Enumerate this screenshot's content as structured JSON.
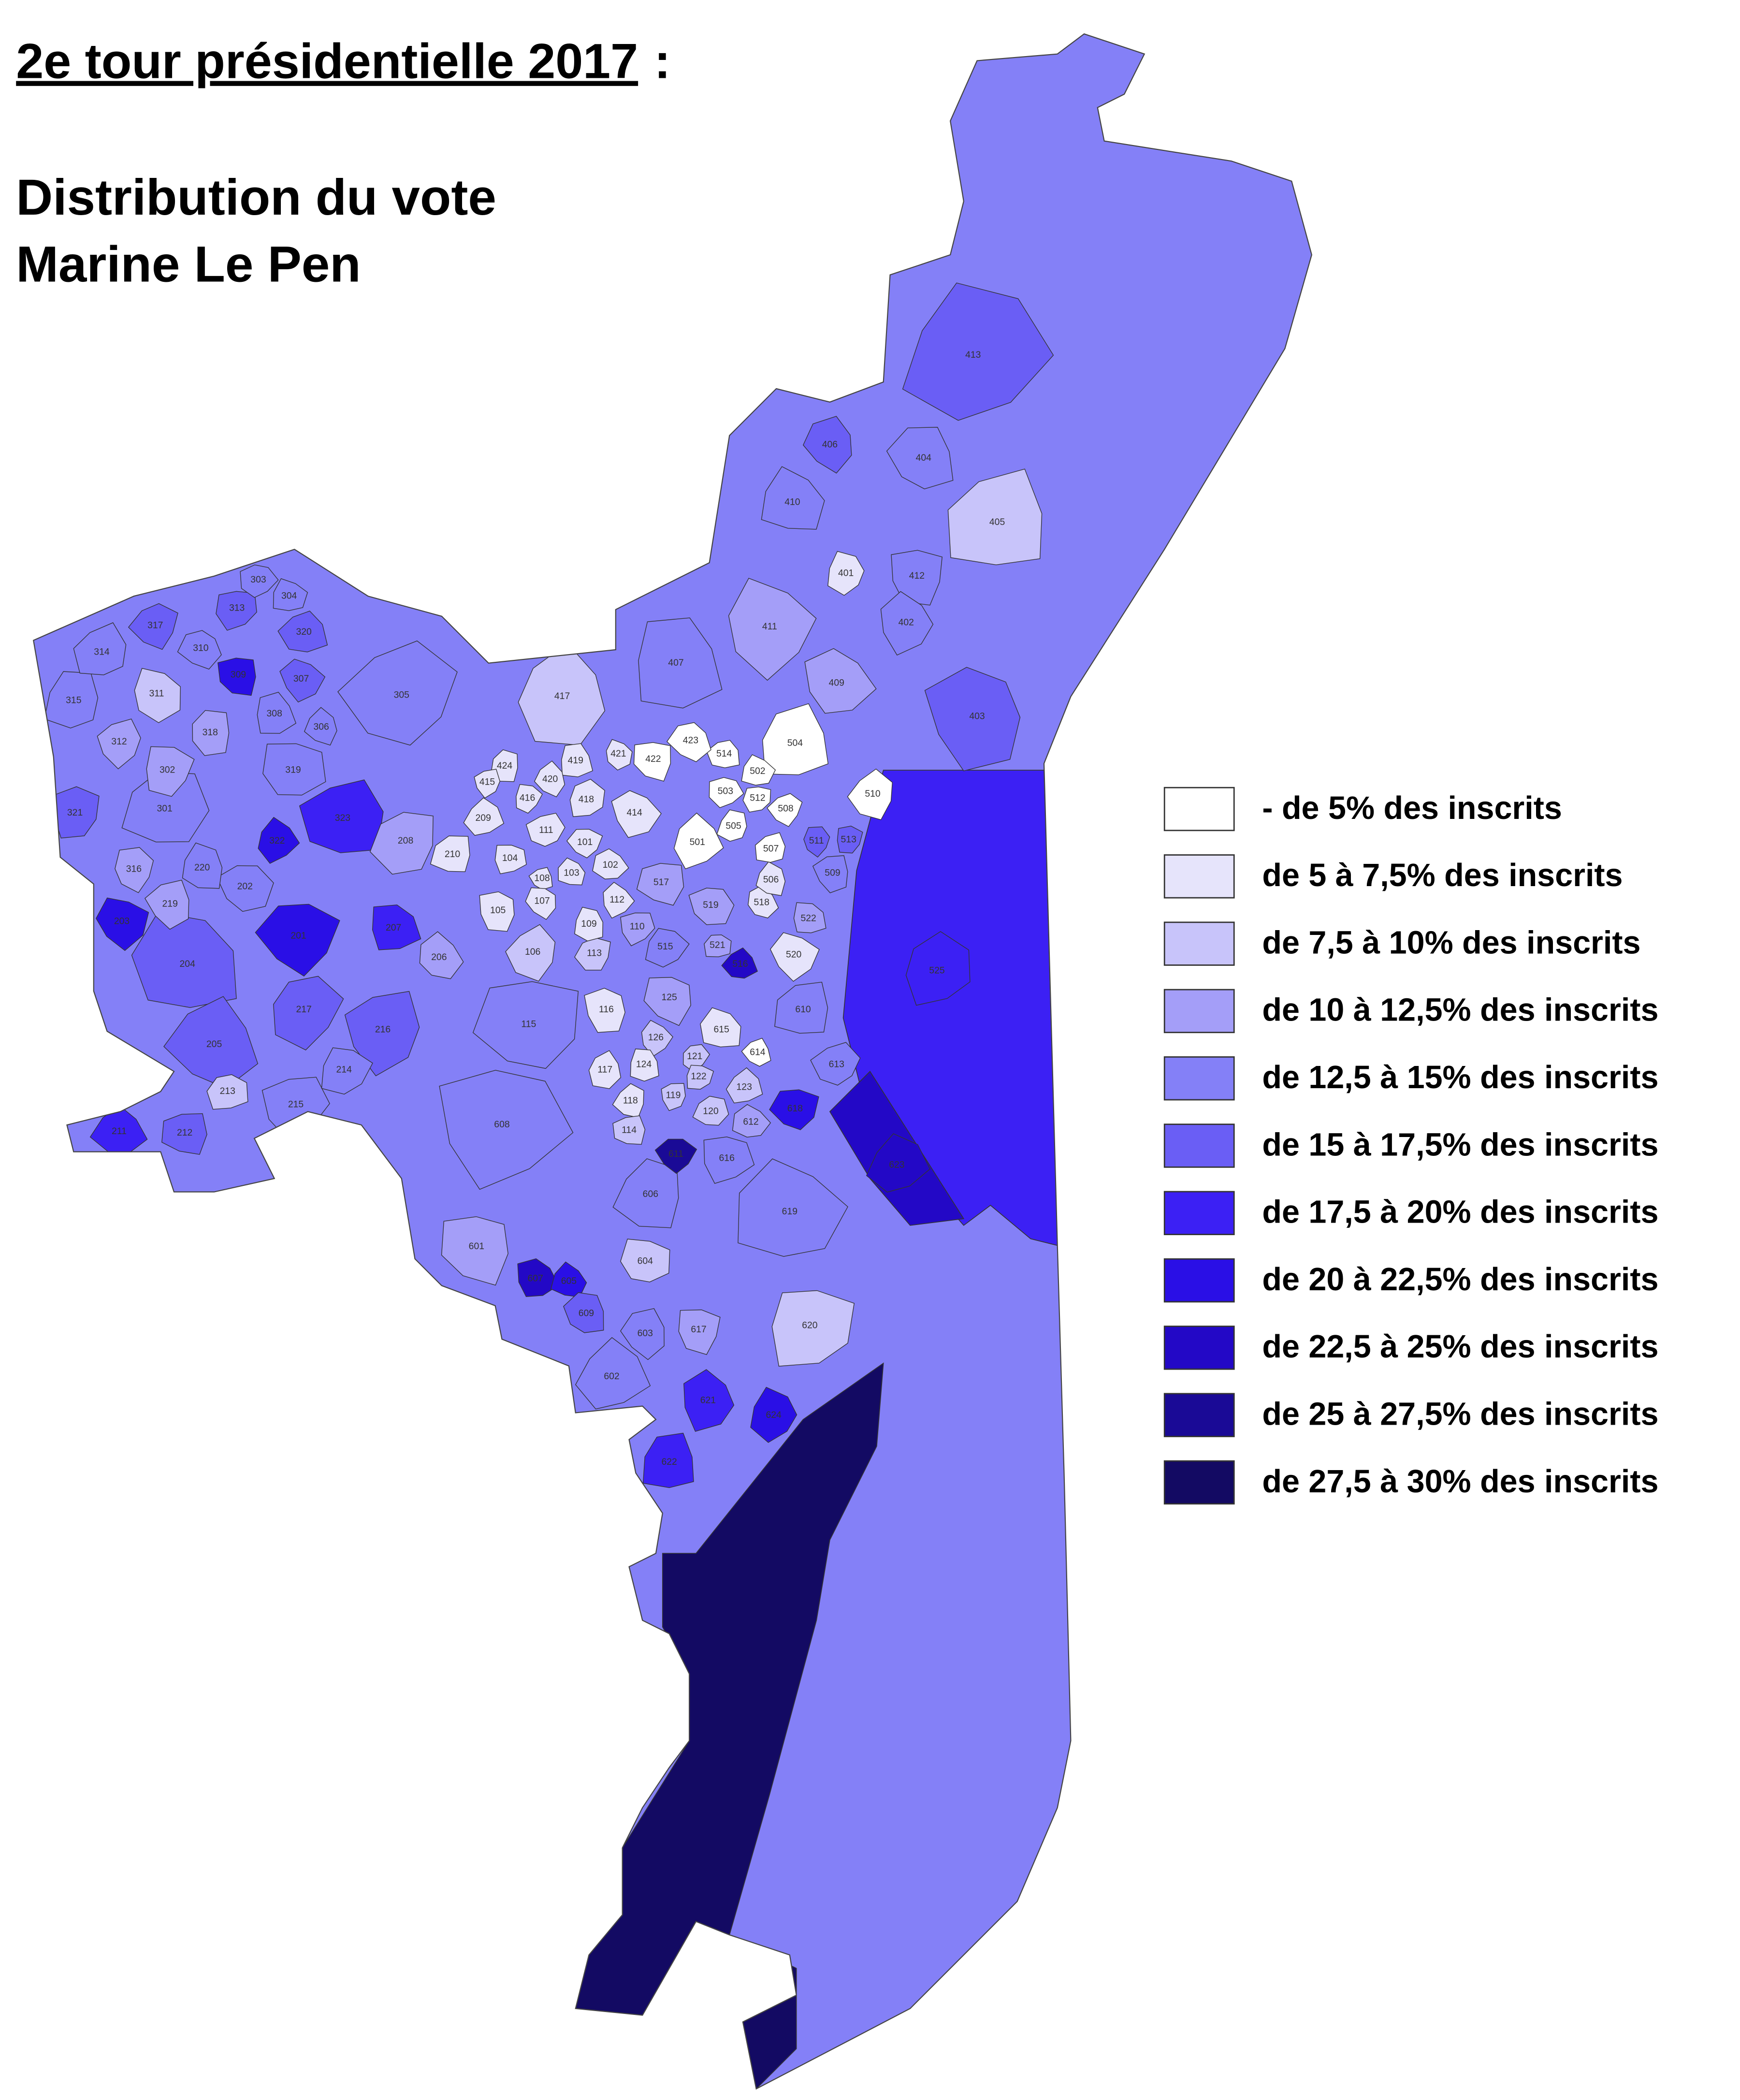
{
  "title": "2e tour présidentielle 2017",
  "title_end": ":",
  "subtitle": [
    "Distribution du vote",
    "Marine Le Pen"
  ],
  "legend": [
    {
      "label": "- de 5% des inscrits",
      "color": "#ffffff"
    },
    {
      "label": "de 5 à 7,5% des inscrits",
      "color": "#e6e4fb"
    },
    {
      "label": "de 7,5 à 10% des inscrits",
      "color": "#c8c4fa"
    },
    {
      "label": "de 10 à 12,5% des inscrits",
      "color": "#a49ef8"
    },
    {
      "label": "de 12,5 à 15% des inscrits",
      "color": "#8480f7"
    },
    {
      "label": "de 15 à 17,5% des inscrits",
      "color": "#6a5ef5"
    },
    {
      "label": "de 17,5 à 20% des inscrits",
      "color": "#3c20f4"
    },
    {
      "label": "de 20 à 22,5% des inscrits",
      "color": "#2a0fe6"
    },
    {
      "label": "de 22,5 à 25% des inscrits",
      "color": "#2308c6"
    },
    {
      "label": "de 25 à 27,5% des inscrits",
      "color": "#1a0a96"
    },
    {
      "label": "de 27,5 à 30% des inscrits",
      "color": "#130a63"
    }
  ],
  "districts": [
    {
      "label": "413",
      "color": "#6a5ef5"
    },
    {
      "label": "405",
      "color": "#c8c4fa"
    },
    {
      "label": "305",
      "color": "#8480f7"
    },
    {
      "label": "115",
      "color": "#8480f7"
    },
    {
      "label": "608",
      "color": "#8480f7"
    },
    {
      "label": "619",
      "color": "#8480f7"
    },
    {
      "label": "204",
      "color": "#6a5ef5"
    },
    {
      "label": "205",
      "color": "#6a5ef5"
    },
    {
      "label": "601",
      "color": "#a49ef8"
    },
    {
      "label": "403",
      "color": "#6a5ef5"
    },
    {
      "label": "411",
      "color": "#a49ef8"
    },
    {
      "label": "407",
      "color": "#8480f7"
    },
    {
      "label": "417",
      "color": "#c8c4fa"
    },
    {
      "label": "606",
      "color": "#8480f7"
    },
    {
      "label": "216",
      "color": "#6a5ef5"
    },
    {
      "label": "217",
      "color": "#6a5ef5"
    },
    {
      "label": "620",
      "color": "#c8c4fa"
    },
    {
      "label": "602",
      "color": "#8480f7"
    },
    {
      "label": "301",
      "color": "#8480f7"
    },
    {
      "label": "323",
      "color": "#3c20f4"
    },
    {
      "label": "201",
      "color": "#2a0fe6"
    },
    {
      "label": "319",
      "color": "#8480f7"
    },
    {
      "label": "409",
      "color": "#a49ef8"
    },
    {
      "label": "410",
      "color": "#8480f7"
    },
    {
      "label": "404",
      "color": "#8480f7"
    },
    {
      "label": "406",
      "color": "#6a5ef5"
    },
    {
      "label": "412",
      "color": "#8480f7"
    },
    {
      "label": "402",
      "color": "#8480f7"
    },
    {
      "label": "401",
      "color": "#e6e4fb"
    },
    {
      "label": "504",
      "color": "#ffffff"
    },
    {
      "label": "510",
      "color": "#ffffff"
    },
    {
      "label": "208",
      "color": "#a49ef8"
    },
    {
      "label": "215",
      "color": "#8480f7"
    },
    {
      "label": "214",
      "color": "#8480f7"
    },
    {
      "label": "213",
      "color": "#c8c4fa"
    },
    {
      "label": "211",
      "color": "#3c20f4"
    },
    {
      "label": "212",
      "color": "#6a5ef5"
    },
    {
      "label": "202",
      "color": "#8480f7"
    },
    {
      "label": "203",
      "color": "#2a0fe6"
    },
    {
      "label": "207",
      "color": "#3c20f4"
    },
    {
      "label": "206",
      "color": "#a49ef8"
    },
    {
      "label": "220",
      "color": "#8480f7"
    },
    {
      "label": "219",
      "color": "#a49ef8"
    },
    {
      "label": "316",
      "color": "#a49ef8"
    },
    {
      "label": "321",
      "color": "#6a5ef5"
    },
    {
      "label": "322",
      "color": "#2a0fe6"
    },
    {
      "label": "315",
      "color": "#8480f7"
    },
    {
      "label": "314",
      "color": "#8480f7"
    },
    {
      "label": "317",
      "color": "#6a5ef5"
    },
    {
      "label": "313",
      "color": "#6a5ef5"
    },
    {
      "label": "303",
      "color": "#8480f7"
    },
    {
      "label": "304",
      "color": "#8480f7"
    },
    {
      "label": "320",
      "color": "#6a5ef5"
    },
    {
      "label": "310",
      "color": "#8480f7"
    },
    {
      "label": "309",
      "color": "#2a0fe6"
    },
    {
      "label": "307",
      "color": "#6a5ef5"
    },
    {
      "label": "311",
      "color": "#c8c4fa"
    },
    {
      "label": "308",
      "color": "#8480f7"
    },
    {
      "label": "306",
      "color": "#8480f7"
    },
    {
      "label": "318",
      "color": "#a49ef8"
    },
    {
      "label": "312",
      "color": "#a49ef8"
    },
    {
      "label": "302",
      "color": "#a49ef8"
    },
    {
      "label": "525",
      "color": "#3c20f4"
    },
    {
      "label": "623",
      "color": "#2308c6"
    },
    {
      "label": "610",
      "color": "#8480f7"
    },
    {
      "label": "613",
      "color": "#8480f7"
    },
    {
      "label": "618",
      "color": "#2a0fe6"
    },
    {
      "label": "616",
      "color": "#8480f7"
    },
    {
      "label": "612",
      "color": "#a49ef8"
    },
    {
      "label": "615",
      "color": "#e6e4fb"
    },
    {
      "label": "614",
      "color": "#ffffff"
    },
    {
      "label": "125",
      "color": "#a49ef8"
    },
    {
      "label": "116",
      "color": "#e6e4fb"
    },
    {
      "label": "126",
      "color": "#c8c4fa"
    },
    {
      "label": "124",
      "color": "#e6e4fb"
    },
    {
      "label": "117",
      "color": "#e6e4fb"
    },
    {
      "label": "118",
      "color": "#e6e4fb"
    },
    {
      "label": "119",
      "color": "#c8c4fa"
    },
    {
      "label": "121",
      "color": "#c8c4fa"
    },
    {
      "label": "122",
      "color": "#c8c4fa"
    },
    {
      "label": "123",
      "color": "#c8c4fa"
    },
    {
      "label": "120",
      "color": "#c8c4fa"
    },
    {
      "label": "114",
      "color": "#c8c4fa"
    },
    {
      "label": "611",
      "color": "#1a0a96"
    },
    {
      "label": "604",
      "color": "#c8c4fa"
    },
    {
      "label": "607",
      "color": "#2308c6"
    },
    {
      "label": "605",
      "color": "#2a0fe6"
    },
    {
      "label": "609",
      "color": "#6a5ef5"
    },
    {
      "label": "603",
      "color": "#8480f7"
    },
    {
      "label": "617",
      "color": "#a49ef8"
    },
    {
      "label": "621",
      "color": "#3c20f4"
    },
    {
      "label": "624",
      "color": "#2a0fe6"
    },
    {
      "label": "622",
      "color": "#3c20f4"
    },
    {
      "label": "106",
      "color": "#c8c4fa"
    },
    {
      "label": "113",
      "color": "#c8c4fa"
    },
    {
      "label": "110",
      "color": "#a49ef8"
    },
    {
      "label": "515",
      "color": "#8480f7"
    },
    {
      "label": "521",
      "color": "#a49ef8"
    },
    {
      "label": "516",
      "color": "#2308c6"
    },
    {
      "label": "517",
      "color": "#a49ef8"
    },
    {
      "label": "519",
      "color": "#a49ef8"
    },
    {
      "label": "520",
      "color": "#e6e4fb"
    },
    {
      "label": "522",
      "color": "#a49ef8"
    },
    {
      "label": "518",
      "color": "#e6e4fb"
    },
    {
      "label": "506",
      "color": "#e6e4fb"
    },
    {
      "label": "509",
      "color": "#8480f7"
    },
    {
      "label": "511",
      "color": "#6a5ef5"
    },
    {
      "label": "513",
      "color": "#6a5ef5"
    },
    {
      "label": "501",
      "color": "#ffffff"
    },
    {
      "label": "505",
      "color": "#ffffff"
    },
    {
      "label": "507",
      "color": "#ffffff"
    },
    {
      "label": "508",
      "color": "#ffffff"
    },
    {
      "label": "512",
      "color": "#ffffff"
    },
    {
      "label": "503",
      "color": "#ffffff"
    },
    {
      "label": "502",
      "color": "#ffffff"
    },
    {
      "label": "514",
      "color": "#ffffff"
    },
    {
      "label": "423",
      "color": "#ffffff"
    },
    {
      "label": "422",
      "color": "#ffffff"
    },
    {
      "label": "414",
      "color": "#e6e4fb"
    },
    {
      "label": "421",
      "color": "#e6e4fb"
    },
    {
      "label": "419",
      "color": "#e6e4fb"
    },
    {
      "label": "420",
      "color": "#e6e4fb"
    },
    {
      "label": "424",
      "color": "#e6e4fb"
    },
    {
      "label": "415",
      "color": "#e6e4fb"
    },
    {
      "label": "416",
      "color": "#e6e4fb"
    },
    {
      "label": "418",
      "color": "#e6e4fb"
    },
    {
      "label": "209",
      "color": "#e6e4fb"
    },
    {
      "label": "210",
      "color": "#e6e4fb"
    },
    {
      "label": "111",
      "color": "#e6e4fb"
    },
    {
      "label": "101",
      "color": "#e6e4fb"
    },
    {
      "label": "104",
      "color": "#e6e4fb"
    },
    {
      "label": "102",
      "color": "#e6e4fb"
    },
    {
      "label": "103",
      "color": "#e6e4fb"
    },
    {
      "label": "108",
      "color": "#e6e4fb"
    },
    {
      "label": "107",
      "color": "#e6e4fb"
    },
    {
      "label": "105",
      "color": "#e6e4fb"
    },
    {
      "label": "112",
      "color": "#e6e4fb"
    },
    {
      "label": "109",
      "color": "#e6e4fb"
    }
  ]
}
